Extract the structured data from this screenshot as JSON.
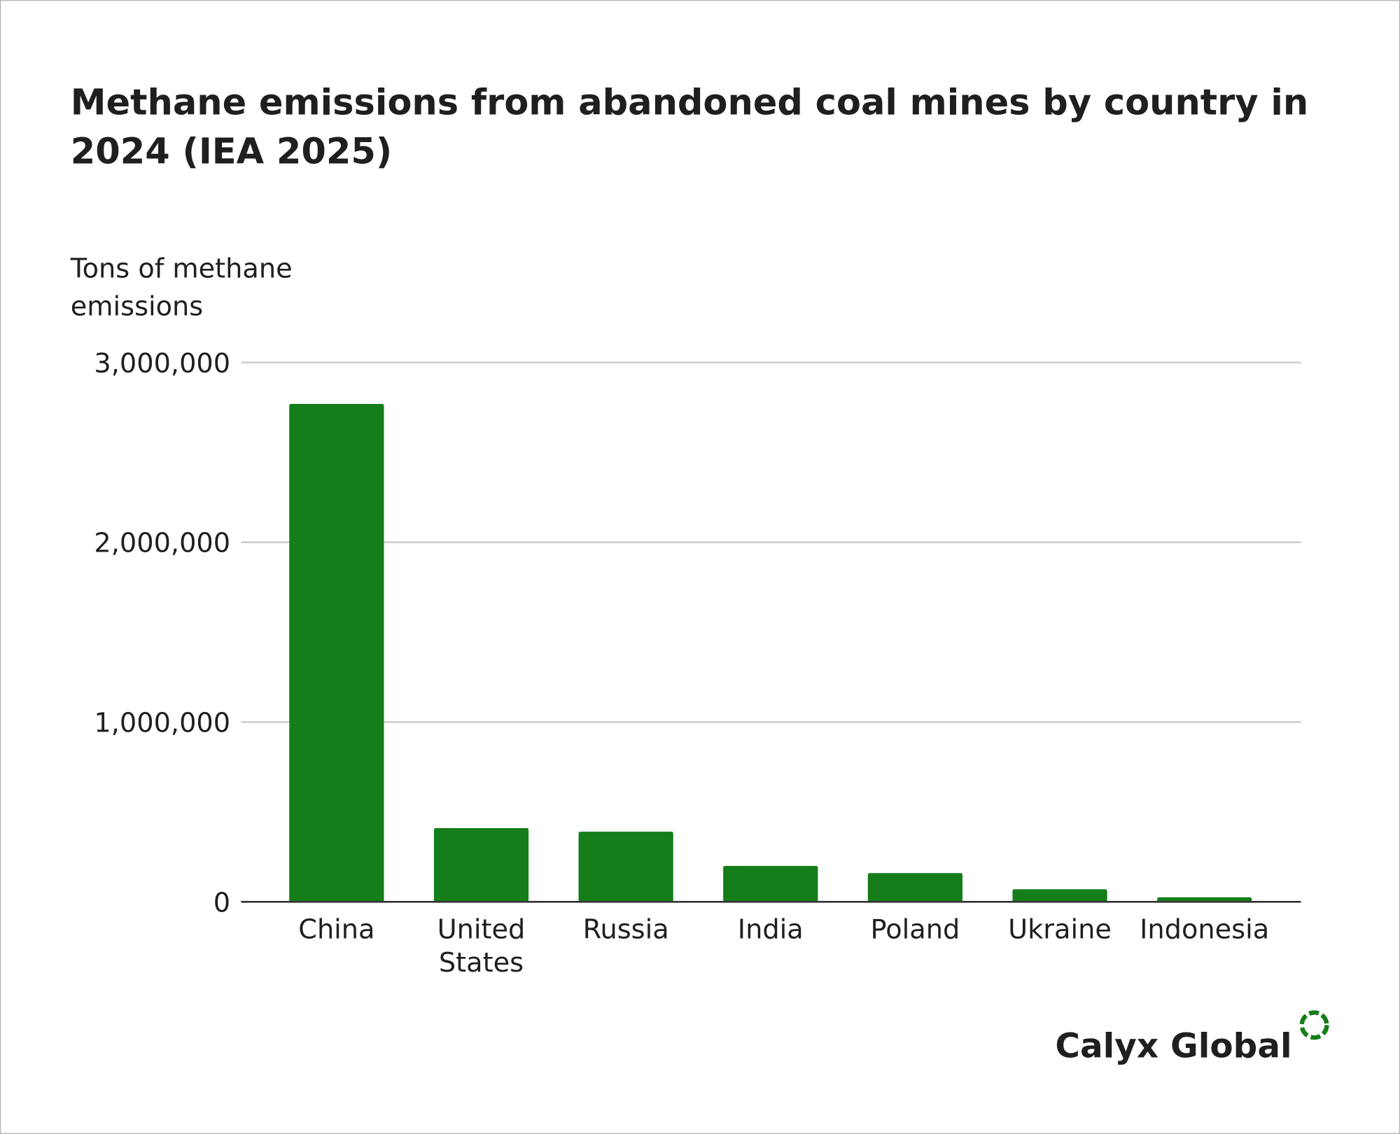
{
  "chart_data": {
    "type": "bar",
    "title": "Methane emissions from abandoned coal mines by country in 2024 (IEA 2025)",
    "y_label": "Tons of methane emissions",
    "categories": [
      "China",
      "United States",
      "Russia",
      "India",
      "Poland",
      "Ukraine",
      "Indonesia"
    ],
    "values": [
      2770000,
      410000,
      390000,
      200000,
      160000,
      70000,
      25000
    ],
    "color": "#157d19",
    "ylim": [
      0,
      3000000
    ],
    "yticks": [
      0,
      {
        "value": 1000000,
        "label": "1,000,000"
      },
      {
        "value": 2000000,
        "label": "2,000,000"
      },
      {
        "value": 3000000,
        "label": "3,000,000"
      }
    ],
    "grid": true,
    "logo": "Calyx Global"
  }
}
